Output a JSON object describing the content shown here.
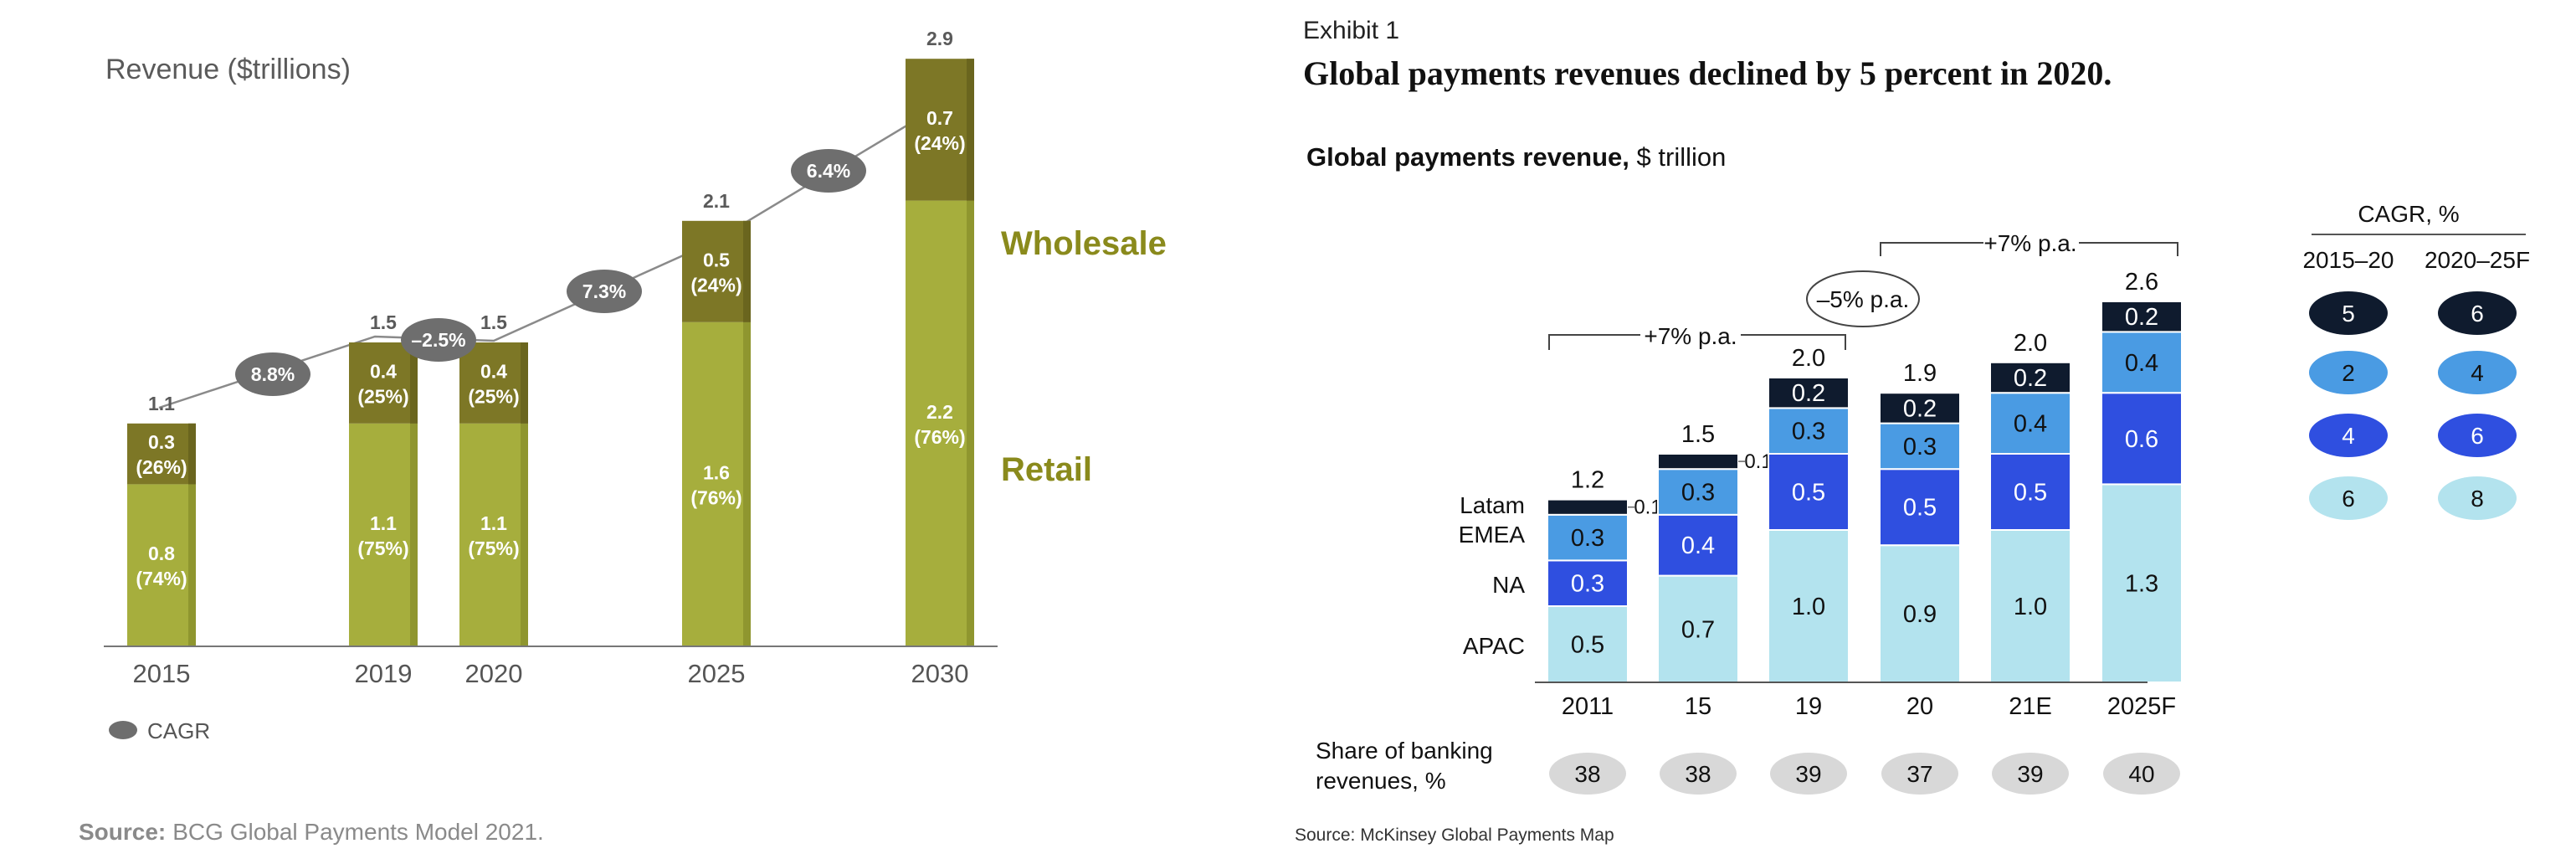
{
  "left": {
    "title": "Revenue ($trillions)",
    "source_label": "Source:",
    "source_text": "BCG Global Payments Model 2021.",
    "legend_cagr": "CAGR",
    "series_labels": {
      "wholesale": "Wholesale",
      "retail": "Retail"
    },
    "colors": {
      "wholesale": "#7d7726",
      "wholesale_edge": "#6a651e",
      "retail": "#a6ae3d",
      "retail_edge": "#8f962f",
      "label_text": "#ffffff",
      "total_text": "#5a5a5a",
      "axis_text": "#555555",
      "cagr_ellipse": "#6e6e6e",
      "series_label_text": "#8a8a1c",
      "line": "#8a8a8a"
    },
    "chart_data": {
      "type": "bar",
      "stacked": true,
      "title": "Revenue ($trillions)",
      "categories": [
        "2015",
        "2019",
        "2020",
        "2025",
        "2030"
      ],
      "series": [
        {
          "name": "Retail",
          "values": [
            0.8,
            1.1,
            1.1,
            1.6,
            2.2
          ],
          "labels": [
            "0.8",
            "1.1",
            "1.1",
            "1.6",
            "2.2"
          ],
          "share_labels": [
            "(74%)",
            "(75%)",
            "(75%)",
            "(76%)",
            "(76%)"
          ]
        },
        {
          "name": "Wholesale",
          "values": [
            0.3,
            0.4,
            0.4,
            0.5,
            0.7
          ],
          "labels": [
            "0.3",
            "0.4",
            "0.4",
            "0.5",
            "0.7"
          ],
          "share_labels": [
            "(26%)",
            "(25%)",
            "(25%)",
            "(24%)",
            "(24%)"
          ]
        }
      ],
      "totals": [
        "1.1",
        "1.5",
        "1.5",
        "2.1",
        "2.9"
      ],
      "cagr": [
        "8.8%",
        "–2.5%",
        "7.3%",
        "6.4%"
      ],
      "ylim": [
        0,
        3.2
      ],
      "grid": false,
      "legend": "bottom-left"
    }
  },
  "right": {
    "exhibit": "Exhibit 1",
    "headline": "Global payments revenues declined by 5 percent in 2020.",
    "chart_title_bold": "Global payments revenue,",
    "chart_title_unit": " $ trillion",
    "source": "Source: McKinsey Global Payments Map",
    "share_label_line1": "Share of banking",
    "share_label_line2": "revenues, %",
    "cagr_header": "CAGR, %",
    "cagr_col1": "2015–20",
    "cagr_col2": "2020–25F",
    "bracket_left": "+7% p.a.",
    "bracket_right": "+7% p.a.",
    "decline_label": "–5% p.a.",
    "colors": {
      "APAC": "#b3e3ee",
      "NA": "#2f4fe0",
      "EMEA": "#4a9be3",
      "Latam": "#0f1b2e",
      "share_pill": "#d8d8d8",
      "text": "#111111"
    },
    "chart_data": {
      "type": "bar",
      "stacked": true,
      "title": "Global payments revenue, $ trillion",
      "categories": [
        "2011",
        "15",
        "19",
        "20",
        "21E",
        "2025F"
      ],
      "series": [
        {
          "name": "APAC",
          "values": [
            0.5,
            0.7,
            1.0,
            0.9,
            1.0,
            1.3
          ],
          "labels": [
            "0.5",
            "0.7",
            "1.0",
            "0.9",
            "1.0",
            "1.3"
          ]
        },
        {
          "name": "NA",
          "values": [
            0.3,
            0.4,
            0.5,
            0.5,
            0.5,
            0.6
          ],
          "labels": [
            "0.3",
            "0.4",
            "0.5",
            "0.5",
            "0.5",
            "0.6"
          ]
        },
        {
          "name": "EMEA",
          "values": [
            0.3,
            0.3,
            0.3,
            0.3,
            0.4,
            0.4
          ],
          "labels": [
            "0.3",
            "0.3",
            "0.3",
            "0.3",
            "0.4",
            "0.4"
          ]
        },
        {
          "name": "Latam",
          "values": [
            0.1,
            0.1,
            0.2,
            0.2,
            0.2,
            0.2
          ],
          "labels": [
            "0.1",
            "0.1",
            "0.2",
            "0.2",
            "0.2",
            "0.2"
          ]
        }
      ],
      "totals": [
        "1.2",
        "1.5",
        "2.0",
        "1.9",
        "2.0",
        "2.6"
      ],
      "share_of_banking_revenues": [
        "38",
        "38",
        "39",
        "37",
        "39",
        "40"
      ],
      "ylim": [
        0,
        2.8
      ],
      "grid": false,
      "cagr_table": {
        "rows": [
          "Latam",
          "EMEA",
          "NA",
          "APAC"
        ],
        "2015-20": [
          "5",
          "2",
          "4",
          "6"
        ],
        "2020-25F": [
          "6",
          "4",
          "6",
          "8"
        ]
      }
    }
  }
}
